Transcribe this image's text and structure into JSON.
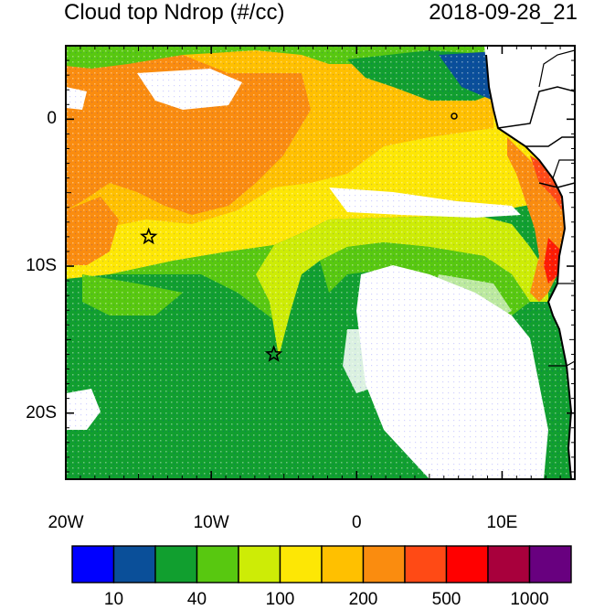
{
  "title_left": "Cloud top Ndrop (#/cc)",
  "title_right": "2018-09-28_21",
  "lon_ticks": [
    {
      "label": "20W",
      "value": -20
    },
    {
      "label": "10W",
      "value": -10
    },
    {
      "label": "0",
      "value": 0
    },
    {
      "label": "10E",
      "value": 10
    }
  ],
  "lat_ticks": [
    {
      "label": "0",
      "value": 0
    },
    {
      "label": "10S",
      "value": -10
    },
    {
      "label": "20S",
      "value": -20
    }
  ],
  "map_extent": {
    "lon": [
      -20,
      15
    ],
    "lat": [
      -24.5,
      5
    ]
  },
  "markers": [
    {
      "type": "star",
      "lon": -14.3,
      "lat": -8.0
    },
    {
      "type": "star",
      "lon": -5.7,
      "lat": -16.0
    }
  ],
  "colorbar": {
    "colors": [
      "#0000ff",
      "#0a4f99",
      "#119f2f",
      "#58c810",
      "#cdec06",
      "#fde705",
      "#ffc000",
      "#fa8c0f",
      "#ff4a15",
      "#ff0000",
      "#a8003c",
      "#68007f"
    ],
    "labels": [
      {
        "text": "10",
        "boundary": 1
      },
      {
        "text": "40",
        "boundary": 3
      },
      {
        "text": "100",
        "boundary": 5
      },
      {
        "text": "200",
        "boundary": 7
      },
      {
        "text": "500",
        "boundary": 9
      },
      {
        "text": "1000",
        "boundary": 11
      }
    ]
  },
  "land_color": "#ffffff",
  "coastline_color": "#000000"
}
